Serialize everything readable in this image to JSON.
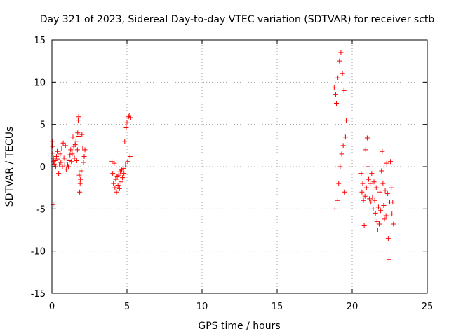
{
  "chart_data": {
    "type": "scatter",
    "title": "Day 321 of 2023, Sidereal Day-to-day VTEC variation (SDTVAR) for receiver sctb",
    "xlabel": "GPS time / hours",
    "ylabel": "SDTVAR / TECUs",
    "xlim": [
      0,
      25
    ],
    "ylim": [
      -15,
      15
    ],
    "x_ticks": [
      0,
      5,
      10,
      15,
      20,
      25
    ],
    "x_tick_labels": [
      "0",
      "5",
      "10",
      "15",
      "20",
      "25"
    ],
    "y_ticks": [
      -15,
      -10,
      -5,
      0,
      5,
      10,
      15
    ],
    "y_tick_labels": [
      "-15",
      "-10",
      "-5",
      "0",
      "5",
      "10",
      "15"
    ],
    "grid": true,
    "marker": "+",
    "color": "#ff0000",
    "series": [
      {
        "name": "sctb",
        "points": [
          [
            0.02,
            3.0
          ],
          [
            0.04,
            2.4
          ],
          [
            0.06,
            1.6
          ],
          [
            0.08,
            -4.5
          ],
          [
            0.1,
            1.0
          ],
          [
            0.12,
            0.6
          ],
          [
            0.15,
            0.3
          ],
          [
            0.2,
            0.7
          ],
          [
            0.25,
            0.0
          ],
          [
            0.3,
            1.2
          ],
          [
            0.35,
            1.8
          ],
          [
            0.4,
            0.9
          ],
          [
            0.45,
            -0.8
          ],
          [
            0.5,
            0.2
          ],
          [
            0.55,
            1.5
          ],
          [
            0.6,
            0.5
          ],
          [
            0.65,
            2.2
          ],
          [
            0.7,
            0.0
          ],
          [
            0.75,
            2.8
          ],
          [
            0.8,
            1.0
          ],
          [
            0.85,
            0.2
          ],
          [
            0.9,
            2.5
          ],
          [
            0.95,
            -0.3
          ],
          [
            1.0,
            0.8
          ],
          [
            1.05,
            0.2
          ],
          [
            1.1,
            0.0
          ],
          [
            1.15,
            0.7
          ],
          [
            1.2,
            1.4
          ],
          [
            1.25,
            2.0
          ],
          [
            1.3,
            0.6
          ],
          [
            1.35,
            1.5
          ],
          [
            1.4,
            3.5
          ],
          [
            1.45,
            2.4
          ],
          [
            1.5,
            1.0
          ],
          [
            1.55,
            2.6
          ],
          [
            1.6,
            3.0
          ],
          [
            1.65,
            0.7
          ],
          [
            1.7,
            2.0
          ],
          [
            1.72,
            4.0
          ],
          [
            1.75,
            5.5
          ],
          [
            1.78,
            5.9
          ],
          [
            1.8,
            3.6
          ],
          [
            1.82,
            -1.0
          ],
          [
            1.85,
            -3.0
          ],
          [
            1.88,
            -2.0
          ],
          [
            1.9,
            -1.5
          ],
          [
            1.95,
            -0.5
          ],
          [
            2.0,
            3.8
          ],
          [
            2.05,
            2.2
          ],
          [
            2.1,
            0.5
          ],
          [
            2.15,
            1.2
          ],
          [
            2.2,
            2.0
          ],
          [
            4.0,
            0.6
          ],
          [
            4.05,
            -0.8
          ],
          [
            4.1,
            -2.0
          ],
          [
            4.15,
            0.4
          ],
          [
            4.2,
            -2.5
          ],
          [
            4.25,
            -1.5
          ],
          [
            4.3,
            -3.0
          ],
          [
            4.35,
            -1.2
          ],
          [
            4.4,
            -2.2
          ],
          [
            4.45,
            -1.0
          ],
          [
            4.5,
            -2.6
          ],
          [
            4.55,
            -0.6
          ],
          [
            4.6,
            -1.8
          ],
          [
            4.65,
            -0.4
          ],
          [
            4.7,
            -1.3
          ],
          [
            4.75,
            -0.2
          ],
          [
            4.8,
            -0.8
          ],
          [
            4.85,
            3.0
          ],
          [
            4.9,
            0.2
          ],
          [
            4.95,
            4.6
          ],
          [
            5.0,
            5.2
          ],
          [
            5.05,
            0.6
          ],
          [
            5.1,
            5.9
          ],
          [
            5.15,
            6.0
          ],
          [
            5.2,
            1.2
          ],
          [
            5.25,
            5.8
          ],
          [
            18.8,
            9.4
          ],
          [
            18.85,
            -5.0
          ],
          [
            18.9,
            8.5
          ],
          [
            18.95,
            7.5
          ],
          [
            19.0,
            -4.0
          ],
          [
            19.05,
            10.5
          ],
          [
            19.1,
            -2.0
          ],
          [
            19.15,
            12.5
          ],
          [
            19.2,
            0.0
          ],
          [
            19.25,
            13.5
          ],
          [
            19.3,
            1.5
          ],
          [
            19.35,
            11.0
          ],
          [
            19.4,
            2.5
          ],
          [
            19.45,
            9.0
          ],
          [
            19.5,
            -3.0
          ],
          [
            19.55,
            3.5
          ],
          [
            19.6,
            5.5
          ],
          [
            20.6,
            -0.8
          ],
          [
            20.65,
            -3.0
          ],
          [
            20.7,
            -2.0
          ],
          [
            20.75,
            -4.0
          ],
          [
            20.8,
            -7.0
          ],
          [
            20.85,
            -3.5
          ],
          [
            20.9,
            2.0
          ],
          [
            20.95,
            -2.5
          ],
          [
            21.0,
            3.4
          ],
          [
            21.05,
            0.0
          ],
          [
            21.1,
            -1.5
          ],
          [
            21.15,
            -3.8
          ],
          [
            21.2,
            -2.0
          ],
          [
            21.25,
            -4.2
          ],
          [
            21.3,
            -0.8
          ],
          [
            21.35,
            -3.6
          ],
          [
            21.4,
            -5.0
          ],
          [
            21.45,
            -1.8
          ],
          [
            21.5,
            -4.0
          ],
          [
            21.55,
            -5.5
          ],
          [
            21.6,
            -2.5
          ],
          [
            21.65,
            -6.5
          ],
          [
            21.7,
            -7.5
          ],
          [
            21.75,
            -4.8
          ],
          [
            21.8,
            -6.8
          ],
          [
            21.85,
            -3.0
          ],
          [
            21.9,
            -5.2
          ],
          [
            21.95,
            -0.5
          ],
          [
            22.0,
            1.8
          ],
          [
            22.05,
            -2.0
          ],
          [
            22.1,
            -4.6
          ],
          [
            22.15,
            -6.2
          ],
          [
            22.2,
            -2.8
          ],
          [
            22.25,
            -5.8
          ],
          [
            22.3,
            0.4
          ],
          [
            22.35,
            -3.2
          ],
          [
            22.4,
            -8.5
          ],
          [
            22.45,
            -11.0
          ],
          [
            22.5,
            -4.2
          ],
          [
            22.55,
            0.6
          ],
          [
            22.6,
            -2.5
          ],
          [
            22.65,
            -5.6
          ],
          [
            22.7,
            -4.2
          ],
          [
            22.75,
            -6.8
          ]
        ]
      }
    ]
  }
}
